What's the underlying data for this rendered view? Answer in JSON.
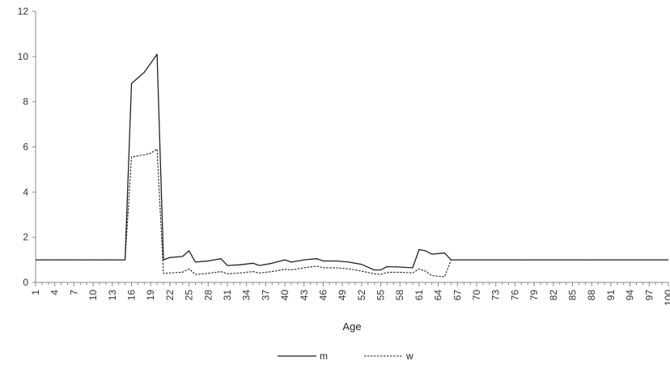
{
  "chart_data": {
    "type": "line",
    "title": "",
    "xlabel": "Age",
    "ylabel": "",
    "xlim": [
      1,
      100
    ],
    "ylim": [
      0,
      12
    ],
    "yticks": [
      0,
      2,
      4,
      6,
      8,
      10,
      12
    ],
    "xticks": [
      1,
      4,
      7,
      10,
      13,
      16,
      19,
      22,
      25,
      28,
      31,
      34,
      37,
      40,
      43,
      46,
      49,
      52,
      55,
      58,
      61,
      64,
      67,
      70,
      73,
      76,
      79,
      82,
      85,
      88,
      91,
      94,
      97,
      100
    ],
    "grid": false,
    "legend": {
      "position": "bottom"
    },
    "series": [
      {
        "name": "m",
        "style": "solid",
        "color": "#222222",
        "points": [
          [
            1,
            1.0
          ],
          [
            15,
            1.0
          ],
          [
            16,
            8.8
          ],
          [
            18,
            9.3
          ],
          [
            19,
            9.7
          ],
          [
            20,
            10.1
          ],
          [
            21,
            1.0
          ],
          [
            22,
            1.1
          ],
          [
            24,
            1.15
          ],
          [
            25,
            1.4
          ],
          [
            26,
            0.9
          ],
          [
            28,
            0.95
          ],
          [
            30,
            1.05
          ],
          [
            31,
            0.75
          ],
          [
            33,
            0.78
          ],
          [
            35,
            0.85
          ],
          [
            36,
            0.75
          ],
          [
            38,
            0.85
          ],
          [
            40,
            1.0
          ],
          [
            41,
            0.9
          ],
          [
            43,
            1.0
          ],
          [
            45,
            1.05
          ],
          [
            46,
            0.95
          ],
          [
            48,
            0.95
          ],
          [
            50,
            0.9
          ],
          [
            52,
            0.8
          ],
          [
            54,
            0.55
          ],
          [
            55,
            0.55
          ],
          [
            56,
            0.7
          ],
          [
            58,
            0.68
          ],
          [
            60,
            0.65
          ],
          [
            61,
            1.45
          ],
          [
            62,
            1.4
          ],
          [
            63,
            1.25
          ],
          [
            65,
            1.3
          ],
          [
            66,
            1.0
          ],
          [
            100,
            1.0
          ]
        ]
      },
      {
        "name": "w",
        "style": "dashed",
        "color": "#222222",
        "points": [
          [
            1,
            1.0
          ],
          [
            15,
            1.0
          ],
          [
            16,
            5.55
          ],
          [
            18,
            5.65
          ],
          [
            19,
            5.72
          ],
          [
            20,
            5.9
          ],
          [
            21,
            0.4
          ],
          [
            22,
            0.42
          ],
          [
            24,
            0.45
          ],
          [
            25,
            0.6
          ],
          [
            26,
            0.35
          ],
          [
            28,
            0.4
          ],
          [
            30,
            0.48
          ],
          [
            31,
            0.38
          ],
          [
            33,
            0.42
          ],
          [
            35,
            0.48
          ],
          [
            36,
            0.42
          ],
          [
            38,
            0.48
          ],
          [
            40,
            0.58
          ],
          [
            41,
            0.55
          ],
          [
            43,
            0.65
          ],
          [
            45,
            0.72
          ],
          [
            46,
            0.65
          ],
          [
            48,
            0.65
          ],
          [
            50,
            0.6
          ],
          [
            52,
            0.5
          ],
          [
            54,
            0.38
          ],
          [
            55,
            0.35
          ],
          [
            56,
            0.45
          ],
          [
            58,
            0.45
          ],
          [
            60,
            0.42
          ],
          [
            61,
            0.6
          ],
          [
            62,
            0.5
          ],
          [
            63,
            0.3
          ],
          [
            65,
            0.25
          ],
          [
            66,
            1.0
          ],
          [
            100,
            1.0
          ]
        ]
      }
    ]
  }
}
